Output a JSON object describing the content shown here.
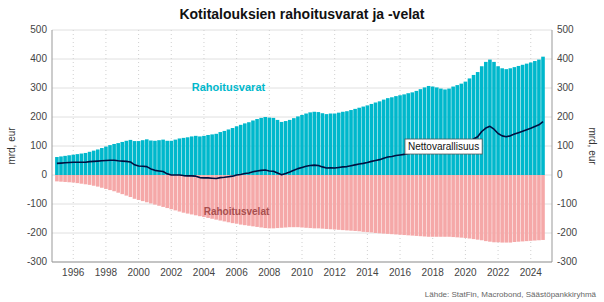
{
  "chart_data": {
    "type": "bar",
    "title": "Kotitalouksien rahoitusvarat ja -velat",
    "ylabel": "mrd, eur",
    "y2label": "mrd, eur",
    "source": "Lähde: StatFin, Macrobond, Säästöpankkiryhmä",
    "grid": true,
    "xlim": [
      1994.7,
      2025.3
    ],
    "xticks": [
      1996,
      1998,
      2000,
      2002,
      2004,
      2006,
      2008,
      2010,
      2012,
      2014,
      2016,
      2018,
      2020,
      2022,
      2024
    ],
    "ylim": [
      -300,
      500
    ],
    "yticks": [
      -300,
      -200,
      -100,
      0,
      100,
      200,
      300,
      400,
      500
    ],
    "y2lim": [
      -300,
      500
    ],
    "y2ticks": [
      -300,
      -200,
      -100,
      0,
      100,
      200,
      300,
      400,
      500
    ],
    "x": [
      1995.0,
      1995.25,
      1995.5,
      1995.75,
      1996.0,
      1996.25,
      1996.5,
      1996.75,
      1997.0,
      1997.25,
      1997.5,
      1997.75,
      1998.0,
      1998.25,
      1998.5,
      1998.75,
      1999.0,
      1999.25,
      1999.5,
      1999.75,
      2000.0,
      2000.25,
      2000.5,
      2000.75,
      2001.0,
      2001.25,
      2001.5,
      2001.75,
      2002.0,
      2002.25,
      2002.5,
      2002.75,
      2003.0,
      2003.25,
      2003.5,
      2003.75,
      2004.0,
      2004.25,
      2004.5,
      2004.75,
      2005.0,
      2005.25,
      2005.5,
      2005.75,
      2006.0,
      2006.25,
      2006.5,
      2006.75,
      2007.0,
      2007.25,
      2007.5,
      2007.75,
      2008.0,
      2008.25,
      2008.5,
      2008.75,
      2009.0,
      2009.25,
      2009.5,
      2009.75,
      2010.0,
      2010.25,
      2010.5,
      2010.75,
      2011.0,
      2011.25,
      2011.5,
      2011.75,
      2012.0,
      2012.25,
      2012.5,
      2012.75,
      2013.0,
      2013.25,
      2013.5,
      2013.75,
      2014.0,
      2014.25,
      2014.5,
      2014.75,
      2015.0,
      2015.25,
      2015.5,
      2015.75,
      2016.0,
      2016.25,
      2016.5,
      2016.75,
      2017.0,
      2017.25,
      2017.5,
      2017.75,
      2018.0,
      2018.25,
      2018.5,
      2018.75,
      2019.0,
      2019.25,
      2019.5,
      2019.75,
      2020.0,
      2020.25,
      2020.5,
      2020.75,
      2021.0,
      2021.25,
      2021.5,
      2021.75,
      2022.0,
      2022.25,
      2022.5,
      2022.75,
      2023.0,
      2023.25,
      2023.5,
      2023.75,
      2024.0,
      2024.25,
      2024.5,
      2024.75
    ],
    "series": [
      {
        "name": "Rahoitusvarat",
        "type": "bar",
        "color": "#00b8cc",
        "values": [
          62,
          64,
          66,
          68,
          70,
          72,
          74,
          76,
          80,
          84,
          88,
          93,
          98,
          103,
          107,
          110,
          114,
          118,
          121,
          117,
          117,
          120,
          123,
          119,
          118,
          120,
          122,
          118,
          118,
          122,
          126,
          128,
          130,
          133,
          135,
          133,
          135,
          138,
          140,
          142,
          148,
          152,
          157,
          162,
          168,
          173,
          178,
          182,
          188,
          193,
          197,
          200,
          198,
          197,
          190,
          183,
          186,
          190,
          196,
          202,
          207,
          212,
          216,
          218,
          217,
          213,
          210,
          212,
          212,
          215,
          218,
          220,
          224,
          228,
          232,
          236,
          240,
          245,
          250,
          254,
          260,
          265,
          268,
          272,
          275,
          278,
          282,
          285,
          290,
          296,
          302,
          307,
          305,
          302,
          298,
          295,
          298,
          305,
          310,
          315,
          322,
          333,
          345,
          355,
          375,
          390,
          398,
          390,
          375,
          368,
          365,
          368,
          372,
          376,
          380,
          384,
          388,
          393,
          398,
          408
        ]
      },
      {
        "name": "Rahoitusvelat",
        "type": "bar",
        "color": "#f5a8a8",
        "values": [
          -22,
          -23,
          -24,
          -25,
          -26,
          -28,
          -30,
          -32,
          -34,
          -37,
          -40,
          -44,
          -48,
          -52,
          -56,
          -61,
          -66,
          -71,
          -76,
          -82,
          -86,
          -90,
          -94,
          -98,
          -102,
          -106,
          -110,
          -114,
          -118,
          -122,
          -126,
          -130,
          -133,
          -136,
          -139,
          -142,
          -145,
          -148,
          -151,
          -154,
          -157,
          -160,
          -163,
          -166,
          -168,
          -171,
          -173,
          -175,
          -177,
          -179,
          -181,
          -183,
          -184,
          -184,
          -183,
          -182,
          -181,
          -180,
          -180,
          -180,
          -181,
          -182,
          -183,
          -184,
          -184,
          -185,
          -186,
          -187,
          -188,
          -189,
          -190,
          -191,
          -192,
          -193,
          -194,
          -196,
          -197,
          -198,
          -200,
          -201,
          -202,
          -203,
          -204,
          -205,
          -206,
          -207,
          -208,
          -209,
          -210,
          -211,
          -212,
          -213,
          -213,
          -213,
          -213,
          -213,
          -213,
          -214,
          -215,
          -216,
          -217,
          -219,
          -221,
          -223,
          -225,
          -228,
          -230,
          -232,
          -232,
          -233,
          -233,
          -233,
          -231,
          -230,
          -229,
          -228,
          -227,
          -226,
          -225,
          -224
        ]
      },
      {
        "name": "Nettovarallisuus",
        "type": "line",
        "color": "#001040",
        "values": [
          40,
          41,
          42,
          43,
          44,
          44,
          44,
          44,
          46,
          47,
          48,
          49,
          50,
          51,
          51,
          49,
          48,
          47,
          45,
          35,
          31,
          30,
          29,
          21,
          16,
          14,
          12,
          4,
          0,
          0,
          0,
          -2,
          -3,
          -3,
          -4,
          -9,
          -10,
          -10,
          -11,
          -12,
          -9,
          -8,
          -6,
          -4,
          0,
          2,
          5,
          7,
          11,
          14,
          16,
          17,
          14,
          13,
          7,
          1,
          5,
          10,
          16,
          22,
          26,
          30,
          33,
          34,
          33,
          28,
          24,
          25,
          24,
          26,
          28,
          29,
          32,
          35,
          38,
          40,
          43,
          47,
          50,
          53,
          58,
          62,
          64,
          67,
          69,
          71,
          74,
          76,
          80,
          85,
          90,
          94,
          92,
          89,
          85,
          82,
          85,
          91,
          95,
          99,
          105,
          114,
          124,
          132,
          150,
          162,
          168,
          158,
          143,
          135,
          132,
          135,
          141,
          146,
          151,
          156,
          161,
          167,
          173,
          184
        ]
      }
    ]
  }
}
